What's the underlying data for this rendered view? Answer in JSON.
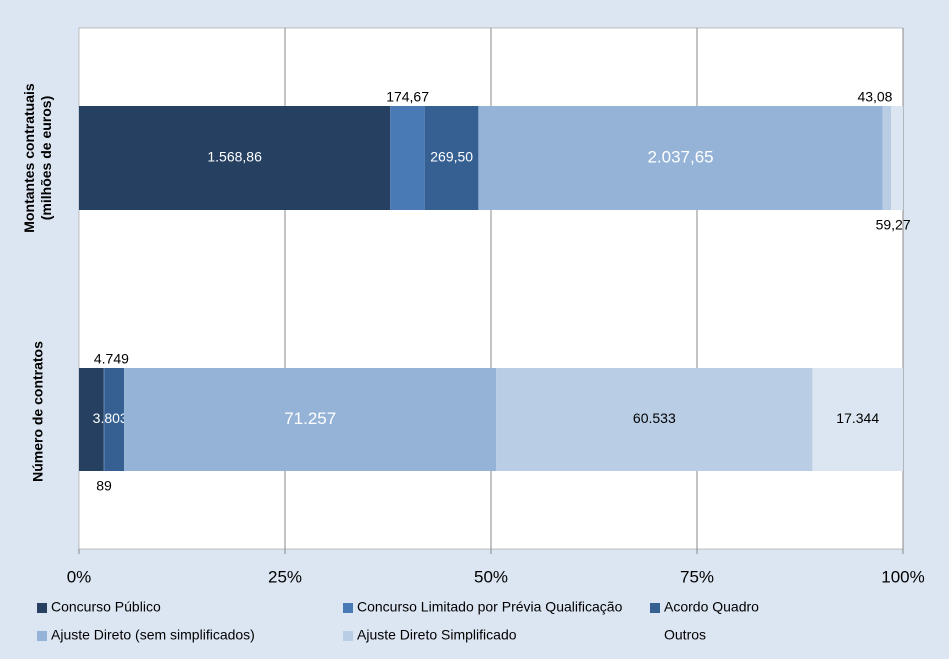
{
  "chart_data": {
    "type": "bar_100_stacked",
    "orientation": "horizontal",
    "categories": [
      "Montantes contratuais (milhões de euros)",
      "Número de contratos"
    ],
    "series": [
      {
        "name": "Concurso Público",
        "color": "#254061",
        "values": [
          1568.86,
          4749
        ],
        "value_labels": [
          "1.568,86",
          "4.749"
        ]
      },
      {
        "name": "Concurso Limitado por Prévia Qualificação",
        "color": "#4a7ab5",
        "values": [
          174.67,
          89
        ],
        "value_labels": [
          "174,67",
          "89"
        ]
      },
      {
        "name": "Acordo Quadro",
        "color": "#366092",
        "values": [
          269.5,
          3803
        ],
        "value_labels": [
          "269,50",
          "3.803"
        ]
      },
      {
        "name": "Ajuste Direto (sem simplificados)",
        "color": "#95b3d7",
        "values": [
          2037.65,
          71257
        ],
        "value_labels": [
          "2.037,65",
          "71.257"
        ]
      },
      {
        "name": "Ajuste Direto Simplificado",
        "color": "#b9cde5",
        "values": [
          43.08,
          60533
        ],
        "value_labels": [
          "43,08",
          "60.533"
        ]
      },
      {
        "name": "Outros",
        "color": "#dce6f2",
        "values": [
          59.27,
          17344
        ],
        "value_labels": [
          "59,27",
          "17.344"
        ]
      }
    ],
    "xlim": [
      0,
      100
    ],
    "xticks": [
      {
        "value": 0,
        "label": "0%"
      },
      {
        "value": 25,
        "label": "25%"
      },
      {
        "value": 50,
        "label": "50%"
      },
      {
        "value": 75,
        "label": "75%"
      },
      {
        "value": 100,
        "label": "100%"
      }
    ],
    "grid": true
  }
}
